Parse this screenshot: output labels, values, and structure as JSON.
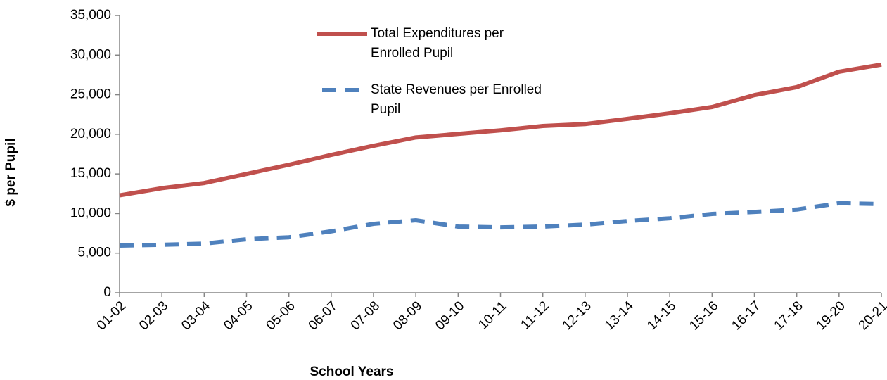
{
  "chart_data": {
    "type": "line",
    "x_label": "School Years",
    "y_label": "$ per Pupil",
    "categories": [
      "01-02",
      "02-03",
      "03-04",
      "04-05",
      "05-06",
      "06-07",
      "07-08",
      "08-09",
      "09-10",
      "10-11",
      "11-12",
      "12-13",
      "13-14",
      "14-15",
      "15-16",
      "16-17",
      "17-18",
      "19-20",
      "20-21"
    ],
    "series": [
      {
        "name": "Total Expenditures per Enrolled Pupil",
        "color": "#c0504d",
        "dash": false,
        "values": [
          12300,
          13200,
          13850,
          15000,
          16150,
          17400,
          18550,
          19600,
          20050,
          20500,
          21050,
          21300,
          21950,
          22650,
          23450,
          24950,
          25950,
          27900,
          28800
        ]
      },
      {
        "name": "State Revenues per Enrolled Pupil",
        "color": "#4f81bd",
        "dash": true,
        "values": [
          5950,
          6050,
          6200,
          6750,
          7000,
          7750,
          8700,
          9150,
          8350,
          8250,
          8350,
          8600,
          9050,
          9400,
          9950,
          10200,
          10500,
          11300,
          11200
        ]
      }
    ],
    "ylim": [
      0,
      35000
    ],
    "yticks": [
      0,
      {
        "value": 5000,
        "label": "5,000"
      },
      {
        "value": 10000,
        "label": "10,000"
      },
      {
        "value": 15000,
        "label": "15,000"
      },
      {
        "value": 20000,
        "label": "20,000"
      },
      {
        "value": 25000,
        "label": "25,000"
      },
      {
        "value": 30000,
        "label": "30,000"
      },
      {
        "value": 35000,
        "label": "35,000"
      }
    ],
    "grid": false,
    "legend": "top"
  }
}
